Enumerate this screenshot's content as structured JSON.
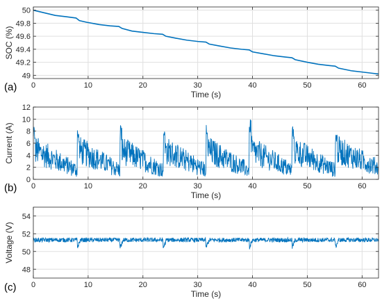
{
  "chart_data": [
    {
      "type": "line",
      "panel_label": "(a)",
      "xlabel": "Time (s)",
      "ylabel": "SOC (%)",
      "xlim": [
        0,
        63
      ],
      "ylim": [
        48.95,
        50.05
      ],
      "xticks": [
        0,
        10,
        20,
        30,
        40,
        50,
        60
      ],
      "yticks": [
        49,
        49.2,
        49.4,
        49.6,
        49.8,
        50
      ],
      "ytick_labels": [
        "49",
        "49.2",
        "49.4",
        "49.6",
        "49.8",
        "50"
      ],
      "grid": true,
      "color": "#0072BD",
      "series": [
        {
          "x": [
            0,
            2,
            4,
            6,
            7.8,
            8.4,
            10,
            12,
            14,
            15.6,
            16.2,
            18,
            20,
            22,
            23.6,
            24.2,
            26,
            28,
            30,
            31.5,
            32.1,
            34,
            36,
            38,
            39.4,
            40,
            42,
            44,
            46,
            47.2,
            47.8,
            50,
            52,
            54,
            55.1,
            55.7,
            58,
            60,
            62,
            63
          ],
          "y": [
            50.0,
            49.96,
            49.92,
            49.9,
            49.88,
            49.84,
            49.81,
            49.78,
            49.76,
            49.75,
            49.72,
            49.68,
            49.66,
            49.64,
            49.63,
            49.6,
            49.57,
            49.54,
            49.52,
            49.51,
            49.48,
            49.45,
            49.42,
            49.4,
            49.39,
            49.36,
            49.33,
            49.3,
            49.28,
            49.27,
            49.24,
            49.2,
            49.17,
            49.15,
            49.14,
            49.11,
            49.07,
            49.05,
            49.03,
            49.02
          ]
        }
      ]
    },
    {
      "type": "line",
      "panel_label": "(b)",
      "xlabel": "Time (s)",
      "ylabel": "Current (A)",
      "xlim": [
        0,
        63
      ],
      "ylim": [
        0,
        12
      ],
      "xticks": [
        0,
        10,
        20,
        30,
        40,
        50,
        60
      ],
      "yticks": [
        0,
        2,
        4,
        6,
        8,
        10,
        12
      ],
      "grid": true,
      "color": "#0072BD",
      "series": [
        {
          "pulse_times": [
            0,
            8,
            15.8,
            23.7,
            31.5,
            39.4,
            47.2,
            55.1
          ],
          "pulse_peaks": [
            9,
            8.7,
            9.2,
            8.8,
            9.1,
            10.8,
            8.9,
            8.6
          ],
          "baseline_min": 0.5,
          "mean_after_pulse": 5,
          "mean_before_next": 1.5,
          "noise_amplitude": 2.5
        }
      ]
    },
    {
      "type": "line",
      "panel_label": "(c)",
      "xlabel": "Time (s)",
      "ylabel": "Voltage (V)",
      "xlim": [
        0,
        63
      ],
      "ylim": [
        47,
        55
      ],
      "xticks": [
        0,
        10,
        20,
        30,
        40,
        50,
        60
      ],
      "yticks": [
        48,
        50,
        52,
        54
      ],
      "grid": true,
      "color": "#0072BD",
      "series": [
        {
          "mean": 51.3,
          "step_times": [
            8,
            15.8,
            23.7,
            31.5,
            39.4,
            47.2,
            55.1
          ],
          "step_drop": 0.9,
          "noise_amplitude": 0.25
        }
      ]
    }
  ]
}
